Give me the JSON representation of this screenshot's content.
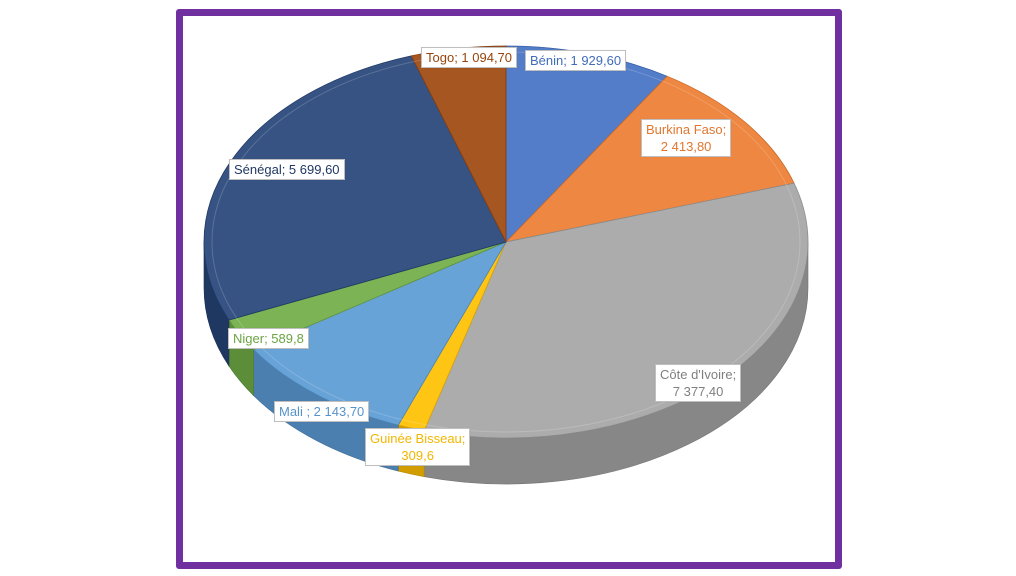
{
  "chart_data": {
    "type": "pie",
    "style": "3d-exploded",
    "title": "",
    "slices": [
      {
        "name": "Bénin",
        "value": 1929.6,
        "color": "#4472c4",
        "label": "Bénin; 1 929,60"
      },
      {
        "name": "Burkina Faso",
        "value": 2413.8,
        "color": "#ed7d31",
        "label": "Burkina Faso;\n2 413,80"
      },
      {
        "name": "Côte d'Ivoire",
        "value": 7377.4,
        "color": "#a5a5a5",
        "label": "Côte d'Ivoire;\n7 377,40"
      },
      {
        "name": "Guinée Bisseau",
        "value": 309.6,
        "color": "#ffc000",
        "label": "Guinée Bisseau;\n309,6"
      },
      {
        "name": "Mali",
        "value": 2143.7,
        "color": "#5b9bd5",
        "label": "Mali ; 2 143,70"
      },
      {
        "name": "Niger",
        "value": 589.8,
        "color": "#70ad47",
        "label": "Niger; 589,8"
      },
      {
        "name": "Sénégal",
        "value": 5699.6,
        "color": "#264478",
        "label": "Sénégal; 5 699,60"
      },
      {
        "name": "Togo",
        "value": 1094.7,
        "color": "#9e480e",
        "label": "Togo; 1 094,70"
      }
    ],
    "legend": "none",
    "frame_color": "#7030a0"
  }
}
